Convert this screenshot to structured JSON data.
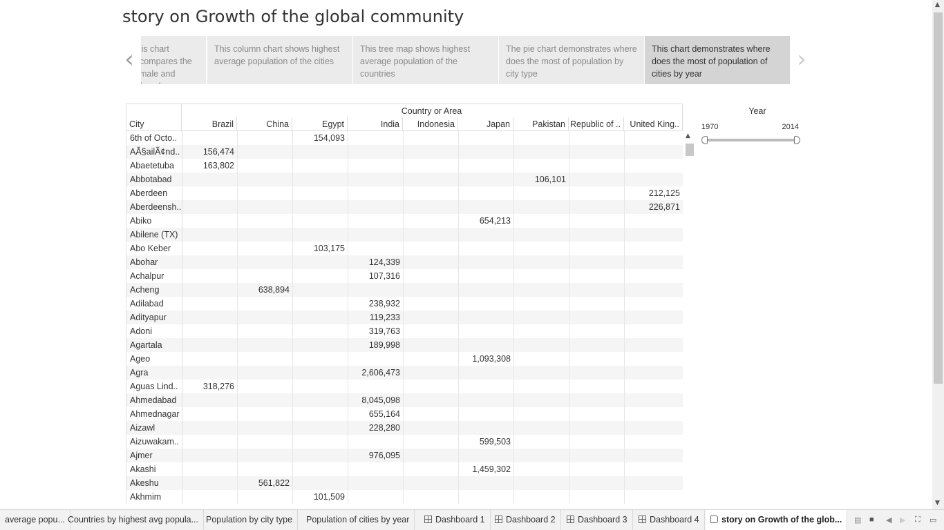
{
  "story": {
    "title": "story on Growth of the global community",
    "prev_label": "‹",
    "next_label": "›",
    "points": [
      {
        "text": "This chart compares the male and female"
      },
      {
        "text": "This column chart shows highest average population of the cities"
      },
      {
        "text": "This tree map shows highest average population of the countries"
      },
      {
        "text": "The pie chart demonstrates where does the most of population by city type"
      },
      {
        "text": "This chart demonstrates where does the most of population of cities by year"
      }
    ]
  },
  "table": {
    "country_header": "Country or Area",
    "city_header": "City",
    "columns": [
      "Brazil",
      "China",
      "Egypt",
      "India",
      "Indonesia",
      "Japan",
      "Pakistan",
      "Republic of ..",
      "United King.."
    ],
    "rows": [
      {
        "city": "6th of Octo..",
        "values": [
          "",
          "",
          "154,093",
          "",
          "",
          "",
          "",
          "",
          ""
        ]
      },
      {
        "city": "AÃ§ailÃ¢nd..",
        "values": [
          "156,474",
          "",
          "",
          "",
          "",
          "",
          "",
          "",
          ""
        ]
      },
      {
        "city": "Abaetetuba",
        "values": [
          "163,802",
          "",
          "",
          "",
          "",
          "",
          "",
          "",
          ""
        ]
      },
      {
        "city": "Abbotabad",
        "values": [
          "",
          "",
          "",
          "",
          "",
          "",
          "106,101",
          "",
          ""
        ]
      },
      {
        "city": "Aberdeen",
        "values": [
          "",
          "",
          "",
          "",
          "",
          "",
          "",
          "",
          "212,125"
        ]
      },
      {
        "city": "Aberdeensh..",
        "values": [
          "",
          "",
          "",
          "",
          "",
          "",
          "",
          "",
          "226,871"
        ]
      },
      {
        "city": "Abiko",
        "values": [
          "",
          "",
          "",
          "",
          "",
          "654,213",
          "",
          "",
          ""
        ]
      },
      {
        "city": "Abilene (TX)",
        "values": [
          "",
          "",
          "",
          "",
          "",
          "",
          "",
          "",
          ""
        ]
      },
      {
        "city": "Abo Keber",
        "values": [
          "",
          "",
          "103,175",
          "",
          "",
          "",
          "",
          "",
          ""
        ]
      },
      {
        "city": "Abohar",
        "values": [
          "",
          "",
          "",
          "124,339",
          "",
          "",
          "",
          "",
          ""
        ]
      },
      {
        "city": "Achalpur",
        "values": [
          "",
          "",
          "",
          "107,316",
          "",
          "",
          "",
          "",
          ""
        ]
      },
      {
        "city": "Acheng",
        "values": [
          "",
          "638,894",
          "",
          "",
          "",
          "",
          "",
          "",
          ""
        ]
      },
      {
        "city": "Adilabad",
        "values": [
          "",
          "",
          "",
          "238,932",
          "",
          "",
          "",
          "",
          ""
        ]
      },
      {
        "city": "Adityapur",
        "values": [
          "",
          "",
          "",
          "119,233",
          "",
          "",
          "",
          "",
          ""
        ]
      },
      {
        "city": "Adoni",
        "values": [
          "",
          "",
          "",
          "319,763",
          "",
          "",
          "",
          "",
          ""
        ]
      },
      {
        "city": "Agartala",
        "values": [
          "",
          "",
          "",
          "189,998",
          "",
          "",
          "",
          "",
          ""
        ]
      },
      {
        "city": "Ageo",
        "values": [
          "",
          "",
          "",
          "",
          "",
          "1,093,308",
          "",
          "",
          ""
        ]
      },
      {
        "city": "Agra",
        "values": [
          "",
          "",
          "",
          "2,606,473",
          "",
          "",
          "",
          "",
          ""
        ]
      },
      {
        "city": "Aguas Lind..",
        "values": [
          "318,276",
          "",
          "",
          "",
          "",
          "",
          "",
          "",
          ""
        ]
      },
      {
        "city": "Ahmedabad",
        "values": [
          "",
          "",
          "",
          "8,045,098",
          "",
          "",
          "",
          "",
          ""
        ]
      },
      {
        "city": "Ahmednagar",
        "values": [
          "",
          "",
          "",
          "655,164",
          "",
          "",
          "",
          "",
          ""
        ]
      },
      {
        "city": "Aizawl",
        "values": [
          "",
          "",
          "",
          "228,280",
          "",
          "",
          "",
          "",
          ""
        ]
      },
      {
        "city": "Aizuwakam..",
        "values": [
          "",
          "",
          "",
          "",
          "",
          "599,503",
          "",
          "",
          ""
        ]
      },
      {
        "city": "Ajmer",
        "values": [
          "",
          "",
          "",
          "976,095",
          "",
          "",
          "",
          "",
          ""
        ]
      },
      {
        "city": "Akashi",
        "values": [
          "",
          "",
          "",
          "",
          "",
          "1,459,302",
          "",
          "",
          ""
        ]
      },
      {
        "city": "Akeshu",
        "values": [
          "",
          "561,822",
          "",
          "",
          "",
          "",
          "",
          "",
          ""
        ]
      },
      {
        "city": "Akhmim",
        "values": [
          "",
          "",
          "101,509",
          "",
          "",
          "",
          "",
          "",
          ""
        ]
      }
    ]
  },
  "filter": {
    "title": "Year",
    "min": "1970",
    "max": "2014"
  },
  "tabs": [
    {
      "label": "average popu...",
      "icon": ""
    },
    {
      "label": "Countries by highest avg popula...",
      "icon": ""
    },
    {
      "label": "Population by city type",
      "icon": ""
    },
    {
      "label": "Population of cities by year",
      "icon": ""
    },
    {
      "label": "Dashboard 1",
      "icon": "grid"
    },
    {
      "label": "Dashboard 2",
      "icon": "grid"
    },
    {
      "label": "Dashboard 3",
      "icon": "grid"
    },
    {
      "label": "Dashboard 4",
      "icon": "grid"
    },
    {
      "label": "story on Growth of the glob...",
      "icon": "book"
    }
  ],
  "active_tab": 8
}
